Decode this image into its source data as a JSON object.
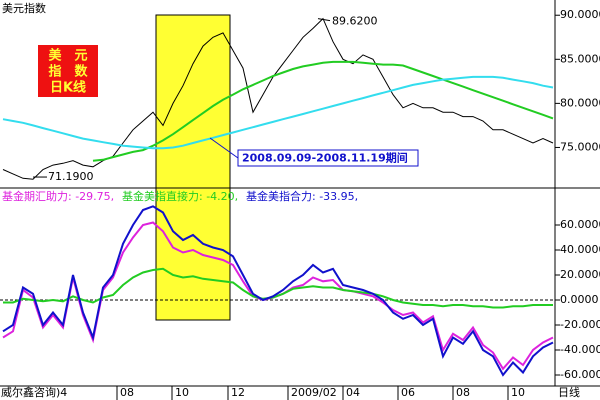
{
  "chart_data": [
    {
      "type": "price",
      "title": "美元指数",
      "badge": [
        "美　元",
        "指　数",
        "日K线"
      ],
      "xlim": [
        -0.3,
        55.2
      ],
      "ylim": [
        70.4,
        91.5
      ],
      "yticks": [
        {
          "value": 90,
          "label": "90.0000"
        },
        {
          "value": 85,
          "label": "85.0000"
        },
        {
          "value": 80,
          "label": "80.0000"
        },
        {
          "value": 75,
          "label": "75.0000"
        }
      ],
      "highlight": {
        "x": [
          15.3,
          22.7
        ],
        "color": "#ffff33",
        "label": "2008.09.09-2008.11.19期间"
      },
      "annotations": [
        {
          "x": 31.5,
          "y": 89.62,
          "label": "89.6200"
        },
        {
          "x": 3,
          "y": 71.19,
          "label": "71.1900"
        }
      ],
      "series": [
        {
          "name": "close",
          "color": "#000000",
          "values": [
            72.5,
            72,
            71.5,
            71.4,
            72.5,
            73,
            73.2,
            73.5,
            73,
            72.8,
            73.5,
            74,
            75.5,
            77,
            78,
            79,
            77.5,
            80,
            82,
            84.5,
            86.5,
            87.5,
            88,
            86,
            84,
            79,
            81,
            83,
            84.5,
            86,
            87.5,
            88.5,
            89.62,
            87,
            85,
            84.5,
            85.5,
            85,
            83,
            81,
            79.5,
            80,
            79.5,
            79.5,
            79,
            79,
            78.5,
            78.5,
            78,
            77,
            77,
            76.5,
            76,
            75.5,
            76,
            75.5
          ]
        },
        {
          "name": "ma-long",
          "color": "#22cc22",
          "values": [
            null,
            null,
            null,
            null,
            null,
            null,
            null,
            null,
            null,
            73.5,
            73.6,
            73.9,
            74.2,
            74.5,
            74.7,
            75.2,
            75.8,
            76.5,
            77.3,
            78.1,
            78.9,
            79.7,
            80.4,
            81,
            81.6,
            82.1,
            82.6,
            83.1,
            83.5,
            83.9,
            84.2,
            84.4,
            84.6,
            84.7,
            84.7,
            84.7,
            84.6,
            84.5,
            84.4,
            84.4,
            84.3,
            83.9,
            83.5,
            83.1,
            82.7,
            82.3,
            81.9,
            81.5,
            81.1,
            80.7,
            80.3,
            79.9,
            79.5,
            79.1,
            78.7,
            78.3
          ]
        },
        {
          "name": "ma-longer",
          "color": "#33ddee",
          "values": [
            78.2,
            78,
            77.8,
            77.5,
            77.2,
            76.9,
            76.6,
            76.3,
            76,
            75.8,
            75.6,
            75.4,
            75.2,
            75.1,
            75,
            74.9,
            74.9,
            75,
            75.2,
            75.5,
            75.8,
            76.1,
            76.4,
            76.7,
            77,
            77.3,
            77.6,
            77.9,
            78.2,
            78.5,
            78.8,
            79.1,
            79.4,
            79.7,
            80,
            80.3,
            80.6,
            80.9,
            81.2,
            81.5,
            81.8,
            82.1,
            82.3,
            82.5,
            82.7,
            82.8,
            82.9,
            83,
            83,
            83,
            82.9,
            82.7,
            82.5,
            82.3,
            82,
            81.8
          ]
        }
      ]
    },
    {
      "type": "line",
      "xlim": [
        -0.3,
        55.2
      ],
      "ylim": [
        -68,
        89.6
      ],
      "yticks": [
        {
          "value": 60,
          "label": "60.0000"
        },
        {
          "value": 40,
          "label": "40.0000"
        },
        {
          "value": 20,
          "label": "20.0000"
        },
        {
          "value": 0,
          "label": "0.0000"
        },
        {
          "value": -20,
          "label": "-20.0000"
        },
        {
          "value": -40,
          "label": "-40.0000"
        },
        {
          "value": -60,
          "label": "-60.0000"
        }
      ],
      "zero_line": 0,
      "series": [
        {
          "name": "基金期汇助力: -29.75,",
          "color": "#dd22dd",
          "values": [
            -30,
            -25,
            8,
            2,
            -22,
            -12,
            -22,
            18,
            -12,
            -32,
            8,
            18,
            38,
            50,
            60,
            62,
            55,
            42,
            38,
            40,
            36,
            34,
            32,
            28,
            15,
            3,
            0,
            2,
            5,
            10,
            12,
            18,
            15,
            16,
            8,
            7,
            5,
            3,
            -2,
            -8,
            -12,
            -10,
            -18,
            -13,
            -40,
            -27,
            -32,
            -22,
            -36,
            -42,
            -55,
            -46,
            -52,
            -40,
            -34,
            -30
          ]
        },
        {
          "name": "基金美指直接力: -4.20,",
          "color": "#22cc22",
          "values": [
            -2,
            -2,
            1,
            0,
            -1,
            0,
            -1,
            3,
            0,
            -2,
            2,
            4,
            12,
            18,
            22,
            24,
            25,
            20,
            18,
            19,
            17,
            16,
            15,
            14,
            8,
            3,
            1,
            2,
            5,
            9,
            10,
            11,
            10,
            10,
            8,
            7,
            6,
            5,
            3,
            0,
            -2,
            -3,
            -4,
            -4,
            -5,
            -4,
            -4,
            -5,
            -5,
            -6,
            -6,
            -5,
            -5,
            -4,
            -4,
            -4
          ]
        },
        {
          "name": "基金美指合力: -33.95,",
          "color": "#1111cc",
          "values": [
            -25,
            -20,
            10,
            5,
            -20,
            -10,
            -20,
            20,
            -10,
            -30,
            10,
            20,
            45,
            60,
            72,
            75,
            70,
            55,
            48,
            52,
            45,
            42,
            40,
            35,
            20,
            5,
            0,
            3,
            8,
            15,
            20,
            28,
            22,
            25,
            12,
            10,
            8,
            5,
            0,
            -10,
            -15,
            -12,
            -20,
            -15,
            -45,
            -30,
            -35,
            -25,
            -40,
            -45,
            -60,
            -50,
            -58,
            -45,
            -38,
            -34
          ]
        }
      ]
    },
    {
      "type": "axis",
      "xticks": [
        {
          "value": 11.4,
          "label": "08"
        },
        {
          "value": 16.9,
          "label": "10"
        },
        {
          "value": 22.5,
          "label": "12"
        },
        {
          "value": 28.5,
          "label": "2009/02"
        },
        {
          "value": 34,
          "label": "04"
        },
        {
          "value": 39.5,
          "label": "06"
        },
        {
          "value": 45,
          "label": "08"
        },
        {
          "value": 50.5,
          "label": "10"
        }
      ],
      "xlim": [
        -0.3,
        55.2
      ],
      "source": "威尔鑫咨询)4",
      "period": "日线"
    }
  ]
}
